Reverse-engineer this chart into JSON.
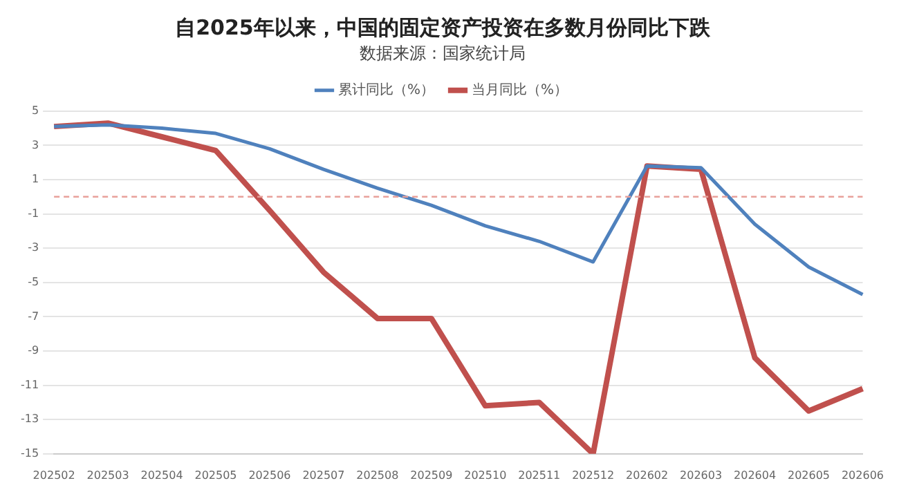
{
  "chart_data": {
    "type": "line",
    "title": "自2025年以来，中国的固定资产投资在多数月份同比下跌",
    "subtitle": "数据来源：国家统计局",
    "categories": [
      "202502",
      "202503",
      "202504",
      "202505",
      "202506",
      "202507",
      "202508",
      "202509",
      "202510",
      "202511",
      "202512",
      "202602",
      "202603",
      "202604",
      "202605",
      "202606"
    ],
    "series": [
      {
        "name": "累计同比（%）",
        "color": "#4f81bd",
        "values": [
          4.1,
          4.2,
          4.0,
          3.7,
          2.8,
          1.6,
          0.5,
          -0.5,
          -1.7,
          -2.6,
          -3.8,
          1.8,
          1.7,
          -1.6,
          -4.1,
          -5.7
        ]
      },
      {
        "name": "当月同比（%）",
        "color": "#c0504d",
        "values": [
          4.1,
          4.3,
          3.5,
          2.7,
          -0.8,
          -4.4,
          -7.1,
          -7.1,
          -12.2,
          -12.0,
          -15.0,
          1.8,
          1.6,
          -9.4,
          -12.5,
          -11.2
        ]
      }
    ],
    "ylim": [
      -15,
      5
    ],
    "yticks": [
      -15,
      -13,
      -11,
      -9,
      -7,
      -5,
      -3,
      -1,
      1,
      3,
      5
    ],
    "grid": "y",
    "legend": "top",
    "line_style": "solid",
    "marker": "none",
    "ref_lines": [
      {
        "axis": "y",
        "value": 0,
        "color": "#e8a09a",
        "line_style": "dashed"
      }
    ]
  }
}
